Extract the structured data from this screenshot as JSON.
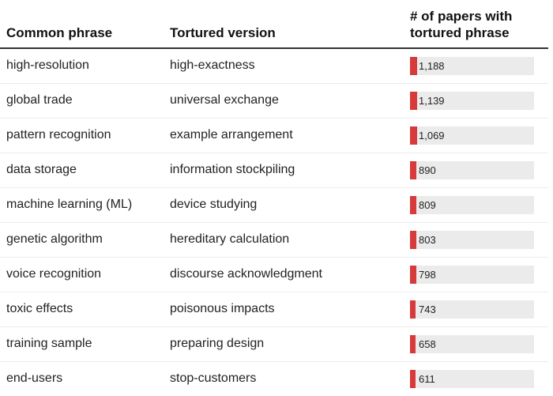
{
  "header": {
    "col1": "Common phrase",
    "col2": "Tortured version",
    "col3_line1": "# of papers with",
    "col3_line2": "tortured phrase"
  },
  "colors": {
    "bar": "#d63a3a",
    "bar_background": "#ebebeb"
  },
  "chart_data": {
    "type": "table",
    "columns": [
      "Common phrase",
      "Tortured version",
      "# of papers with tortured phrase"
    ],
    "rows": [
      {
        "common": "high-resolution",
        "tortured": "high-exactness",
        "value": 1188,
        "label": "1,188"
      },
      {
        "common": "global trade",
        "tortured": "universal exchange",
        "value": 1139,
        "label": "1,139"
      },
      {
        "common": "pattern recognition",
        "tortured": "example arrangement",
        "value": 1069,
        "label": "1,069"
      },
      {
        "common": "data storage",
        "tortured": "information stockpiling",
        "value": 890,
        "label": "890"
      },
      {
        "common": "machine learning (ML)",
        "tortured": "device studying",
        "value": 809,
        "label": "809"
      },
      {
        "common": "genetic algorithm",
        "tortured": "hereditary calculation",
        "value": 803,
        "label": "803"
      },
      {
        "common": "voice recognition",
        "tortured": "discourse acknowledgment",
        "value": 798,
        "label": "798"
      },
      {
        "common": "toxic effects",
        "tortured": "poisonous impacts",
        "value": 743,
        "label": "743"
      },
      {
        "common": "training sample",
        "tortured": "preparing design",
        "value": 658,
        "label": "658"
      },
      {
        "common": "end-users",
        "tortured": "stop-customers",
        "value": 611,
        "label": "611"
      }
    ]
  }
}
